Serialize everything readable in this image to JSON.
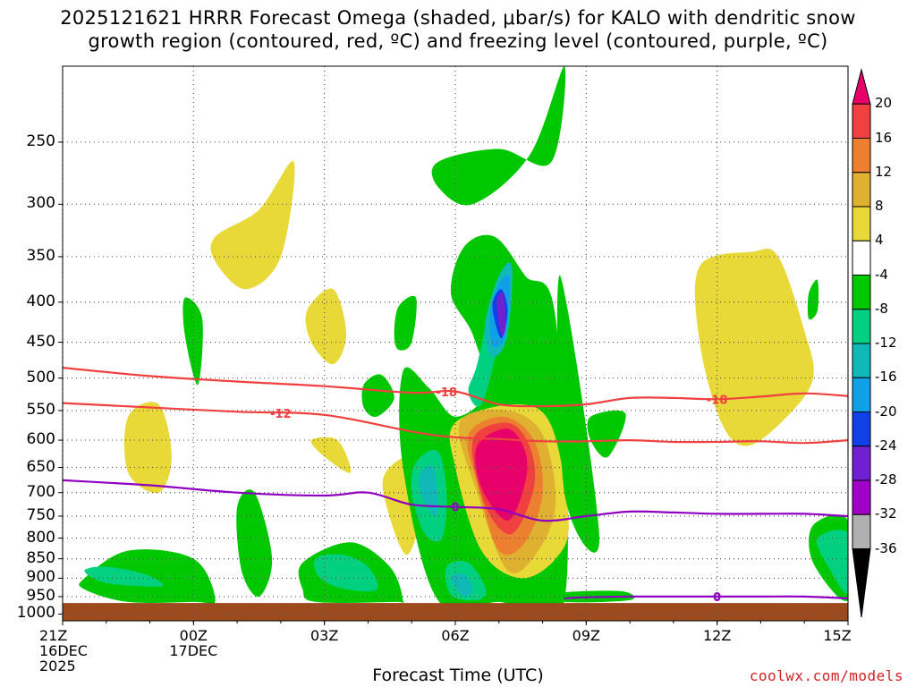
{
  "chart_data": {
    "type": "heatmap",
    "title": "2025121621 HRRR Forecast Omega (shaded, μbar/s) for KALO with dendritic snow",
    "title_line2": "growth region (contoured, red, ºC) and freezing level (contoured, purple, ºC)",
    "xlabel": "Forecast Time (UTC)",
    "ylabel": "",
    "credit": "coolwx.com/models",
    "x_ticks": [
      {
        "hour": 0,
        "label": "21Z",
        "line2": "16DEC",
        "line3": "2025"
      },
      {
        "hour": 3,
        "label": "00Z",
        "line2": "17DEC",
        "line3": ""
      },
      {
        "hour": 6,
        "label": "03Z",
        "line2": "",
        "line3": ""
      },
      {
        "hour": 9,
        "label": "06Z",
        "line2": "",
        "line3": ""
      },
      {
        "hour": 12,
        "label": "09Z",
        "line2": "",
        "line3": ""
      },
      {
        "hour": 15,
        "label": "12Z",
        "line2": "",
        "line3": ""
      },
      {
        "hour": 18,
        "label": "15Z",
        "line2": "",
        "line3": ""
      }
    ],
    "x_range": [
      0,
      18
    ],
    "y_ticks": [
      250,
      300,
      350,
      400,
      450,
      500,
      550,
      600,
      650,
      700,
      750,
      800,
      850,
      900,
      950,
      1000
    ],
    "y_range_hPa": [
      1020,
      200
    ],
    "y_scale": "log",
    "colorbar": {
      "units": "μbar/s",
      "levels": [
        20,
        16,
        12,
        8,
        4,
        -4,
        -8,
        -12,
        -16,
        -20,
        -24,
        -28,
        -32,
        -36
      ],
      "colors": [
        "#e8006a",
        "#f04040",
        "#ec8030",
        "#e0b030",
        "#e8d838",
        "#ffffff",
        "#00c800",
        "#00d080",
        "#10b8b8",
        "#10a0e8",
        "#1040e8",
        "#7020d0",
        "#a000c8",
        "#b0b0b0",
        "#000000"
      ]
    },
    "ground_color": "#9c4a1e",
    "contours": {
      "dgz_color": "#f04040",
      "freezing_color": "#9000c0",
      "dgz_top": {
        "label": "-18",
        "hours": [
          0,
          2,
          4,
          6,
          8,
          9,
          10,
          11,
          12,
          13,
          14,
          15,
          16,
          17,
          18
        ],
        "p": [
          485,
          497,
          505,
          512,
          522,
          520,
          540,
          543,
          540,
          530,
          530,
          532,
          528,
          523,
          527
        ]
      },
      "dgz_bottom": {
        "label": "-12",
        "hours": [
          0,
          2,
          4,
          6,
          8,
          9,
          10,
          11,
          12,
          13,
          14,
          15,
          16,
          17,
          18
        ],
        "p": [
          538,
          545,
          552,
          557,
          585,
          595,
          598,
          602,
          602,
          600,
          603,
          603,
          602,
          605,
          600
        ]
      },
      "freezing_level": {
        "label": "0",
        "hours": [
          0,
          2,
          4,
          6,
          7,
          8,
          9,
          10,
          11,
          12,
          13,
          14,
          15,
          16,
          17,
          18
        ],
        "p": [
          675,
          685,
          700,
          706,
          700,
          725,
          730,
          735,
          760,
          750,
          740,
          742,
          745,
          745,
          745,
          750
        ]
      },
      "freezing_level_low": {
        "label": "0",
        "hours": [
          11.5,
          12,
          13,
          14,
          15,
          16,
          17,
          18
        ],
        "p": [
          955,
          952,
          950,
          950,
          950,
          950,
          950,
          955
        ]
      }
    },
    "omega_regions": [
      {
        "level": 4,
        "hours": [
          3.5,
          4.5,
          5.3,
          5.0,
          4.2,
          3.5
        ],
        "p": [
          330,
          305,
          265,
          350,
          385,
          355
        ],
        "name": "upward-weak-1"
      },
      {
        "level": -4,
        "hours": [
          2.8,
          3.2,
          3.1,
          2.8
        ],
        "p": [
          395,
          420,
          510,
          440
        ],
        "name": "downward-weak-1"
      },
      {
        "level": 4,
        "hours": [
          5.6,
          6.2,
          6.5,
          6.2,
          5.7
        ],
        "p": [
          410,
          385,
          440,
          480,
          450
        ],
        "name": "upward-weak-2"
      },
      {
        "level": -4,
        "hours": [
          7.7,
          8.1,
          8.0,
          7.7,
          7.6
        ],
        "p": [
          405,
          395,
          450,
          460,
          440
        ],
        "name": "downward-weak-2"
      },
      {
        "level": -4,
        "hours": [
          8.6,
          10.0,
          11.2,
          11.5,
          10.7,
          9.4,
          8.6
        ],
        "p": [
          265,
          255,
          265,
          200,
          260,
          300,
          285
        ],
        "name": "downward-upper"
      },
      {
        "level": -4,
        "hours": [
          6.9,
          7.3,
          7.6,
          7.2,
          6.9
        ],
        "p": [
          510,
          495,
          530,
          560,
          545
        ],
        "name": "downward-weak-3"
      },
      {
        "level": 4,
        "hours": [
          14.6,
          15.8,
          16.4,
          17.0,
          17.2,
          16.6,
          15.7,
          15.1,
          14.6
        ],
        "p": [
          360,
          345,
          350,
          435,
          500,
          560,
          610,
          570,
          450
        ],
        "name": "upward-right"
      },
      {
        "level": -4,
        "hours": [
          17.1,
          17.3,
          17.3,
          17.1
        ],
        "p": [
          390,
          375,
          410,
          420
        ],
        "name": "downward-right-small"
      },
      {
        "level": -4,
        "hours": [
          12.1,
          12.9,
          12.5,
          12.1
        ],
        "p": [
          560,
          555,
          630,
          600
        ],
        "name": "downward-mid"
      },
      {
        "level": 4,
        "hours": [
          1.5,
          2.2,
          2.5,
          2.2,
          1.5
        ],
        "p": [
          560,
          540,
          630,
          700,
          660
        ],
        "name": "upward-left"
      },
      {
        "level": 4,
        "hours": [
          5.7,
          6.3,
          6.6,
          6.0
        ],
        "p": [
          600,
          600,
          660,
          630
        ],
        "name": "upward-small"
      },
      {
        "level": 4,
        "hours": [
          7.4,
          8.0,
          8.3,
          7.9,
          7.4
        ],
        "p": [
          660,
          630,
          700,
          840,
          720
        ],
        "name": "upward-lower"
      },
      {
        "level": -4,
        "hours": [
          4.0,
          4.4,
          4.8,
          4.5,
          4.1
        ],
        "p": [
          730,
          700,
          850,
          950,
          880
        ],
        "name": "downward-column"
      },
      {
        "level": -4,
        "hours": [
          0.5,
          1.5,
          3.0,
          3.5,
          3.0,
          1.5,
          0.5
        ],
        "p": [
          900,
          830,
          850,
          960,
          965,
          965,
          930
        ],
        "name": "downward-left-low"
      },
      {
        "level": -4,
        "hours": [
          5.5,
          6.6,
          7.5,
          7.8,
          7.6,
          5.8,
          5.5
        ],
        "p": [
          860,
          810,
          870,
          960,
          965,
          965,
          930
        ],
        "name": "downward-mid-low"
      },
      {
        "level": -4,
        "hours": [
          17.2,
          18.0,
          18.0,
          17.2
        ],
        "p": [
          770,
          760,
          960,
          860
        ],
        "name": "downward-right-low"
      },
      {
        "level": -4,
        "hours": [
          11.4,
          12.8,
          13.0,
          11.5
        ],
        "p": [
          940,
          935,
          960,
          965
        ],
        "name": "downward-right-sfc"
      },
      {
        "level": -4,
        "hours": [
          7.8,
          8.4,
          9.0,
          9.7,
          9.4,
          8.9,
          9.2,
          9.9,
          10.6,
          11.3,
          11.5,
          10.0,
          8.6,
          7.8
        ],
        "p": [
          490,
          515,
          560,
          520,
          440,
          390,
          340,
          330,
          370,
          420,
          960,
          965,
          960,
          650
        ],
        "name": "downward-main"
      },
      {
        "level": -8,
        "hours": [
          9.3,
          9.5,
          9.9,
          10.3,
          10.0,
          9.6
        ],
        "p": [
          520,
          480,
          390,
          380,
          450,
          540
        ],
        "name": "downward-main-8"
      },
      {
        "level": -12,
        "hours": [
          9.7,
          10.0,
          10.3,
          10.2,
          9.9,
          9.7
        ],
        "p": [
          420,
          370,
          360,
          440,
          470,
          450
        ],
        "name": "downward-main-12"
      },
      {
        "level": -16,
        "hours": [
          9.8,
          10.05,
          10.25,
          10.15,
          9.85
        ],
        "p": [
          410,
          375,
          375,
          440,
          455
        ],
        "name": "downward-main-16"
      },
      {
        "level": -20,
        "hours": [
          9.85,
          10.05,
          10.2,
          10.05
        ],
        "p": [
          405,
          385,
          410,
          445
        ],
        "name": "downward-main-20"
      },
      {
        "level": -24,
        "hours": [
          9.95,
          10.1,
          10.15,
          10.05
        ],
        "p": [
          400,
          390,
          430,
          440
        ],
        "name": "downward-main-24"
      },
      {
        "level": 4,
        "hours": [
          9.0,
          10.4,
          11.2,
          11.6,
          11.3,
          10.5,
          9.6,
          9.0
        ],
        "p": [
          570,
          540,
          575,
          760,
          850,
          900,
          830,
          650
        ],
        "name": "upward-main"
      },
      {
        "level": 8,
        "hours": [
          9.1,
          10.2,
          11.0,
          11.3,
          10.9,
          10.2,
          9.5
        ],
        "p": [
          570,
          550,
          590,
          720,
          830,
          880,
          700
        ],
        "name": "upward-main-8"
      },
      {
        "level": 12,
        "hours": [
          9.3,
          10.1,
          10.8,
          11.0,
          10.6,
          10.0,
          9.5
        ],
        "p": [
          590,
          560,
          600,
          700,
          810,
          830,
          680
        ],
        "name": "upward-main-12"
      },
      {
        "level": 16,
        "hours": [
          9.4,
          10.2,
          10.7,
          10.8,
          10.3,
          9.7
        ],
        "p": [
          600,
          570,
          610,
          690,
          790,
          730
        ],
        "name": "upward-main-16"
      },
      {
        "level": 20,
        "hours": [
          9.5,
          10.2,
          10.6,
          10.6,
          10.2,
          9.6
        ],
        "p": [
          610,
          580,
          620,
          680,
          760,
          690
        ],
        "name": "upward-main-20"
      },
      {
        "level": -8,
        "hours": [
          8.1,
          8.6,
          8.8,
          8.7,
          8.3,
          8.0
        ],
        "p": [
          640,
          620,
          700,
          800,
          790,
          700
        ],
        "name": "downward-8-col"
      },
      {
        "level": -12,
        "hours": [
          8.2,
          8.5,
          8.6,
          8.5,
          8.2
        ],
        "p": [
          660,
          650,
          720,
          750,
          700
        ],
        "name": "downward-12-col"
      },
      {
        "level": -8,
        "hours": [
          0.5,
          1.0,
          1.9,
          2.3,
          1.6,
          0.9
        ],
        "p": [
          880,
          870,
          890,
          920,
          920,
          910
        ],
        "name": "downward-8-left"
      },
      {
        "level": -8,
        "hours": [
          5.8,
          6.4,
          7.0,
          7.2,
          6.5,
          5.9
        ],
        "p": [
          850,
          840,
          870,
          930,
          930,
          900
        ],
        "name": "downward-8-mid"
      },
      {
        "level": -8,
        "hours": [
          8.8,
          9.3,
          9.7,
          9.5,
          8.9
        ],
        "p": [
          870,
          860,
          930,
          960,
          945
        ],
        "name": "downward-8-sfc"
      },
      {
        "level": -12,
        "hours": [
          8.9,
          9.2,
          9.4,
          9.2
        ],
        "p": [
          900,
          890,
          930,
          950
        ],
        "name": "downward-12-sfc"
      },
      {
        "level": -8,
        "hours": [
          17.3,
          18.0,
          18.0,
          17.5
        ],
        "p": [
          800,
          790,
          940,
          860
        ],
        "name": "downward-8-right"
      },
      {
        "level": -4,
        "hours": [
          11.4,
          12.3,
          11.5
        ],
        "p": [
          370,
          800,
          700
        ],
        "name": "downward-sliver"
      }
    ]
  }
}
